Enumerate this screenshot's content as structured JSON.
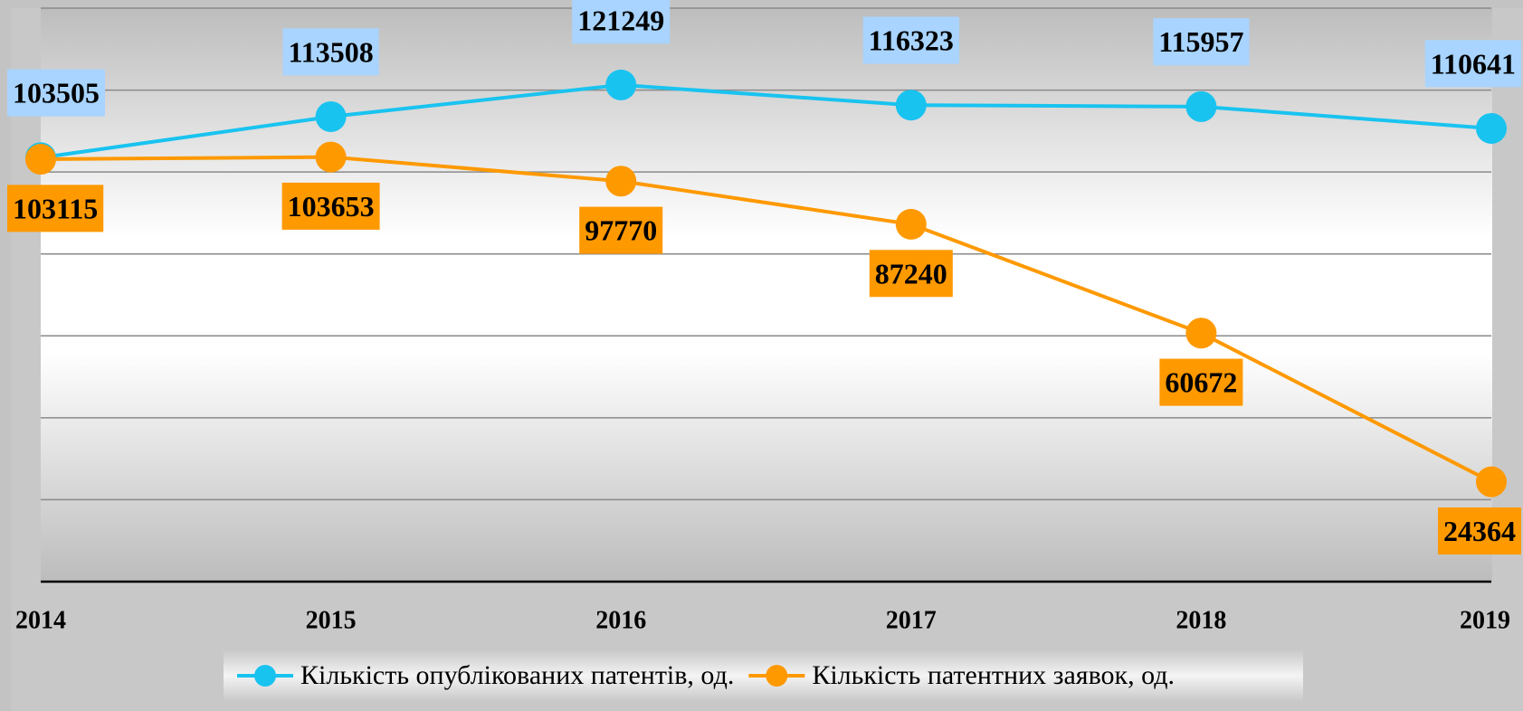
{
  "chart_data": {
    "type": "line",
    "categories": [
      "2014",
      "2015",
      "2016",
      "2017",
      "2018",
      "2019"
    ],
    "series": [
      {
        "name": "Кількість опублікованих патентів, од.",
        "color": "#19c3f0",
        "label_color": "#a8d4ff",
        "values": [
          103505,
          113508,
          121249,
          116323,
          115957,
          110641
        ]
      },
      {
        "name": "Кількість патентних заявок, од.",
        "color": "#ff9900",
        "label_color": "#ff9900",
        "values": [
          103115,
          103653,
          97770,
          87240,
          60672,
          24364
        ]
      }
    ],
    "ylim": [
      0,
      140000
    ],
    "yticks": [
      0,
      20000,
      40000,
      60000,
      80000,
      100000,
      120000,
      140000
    ],
    "grid": true
  }
}
